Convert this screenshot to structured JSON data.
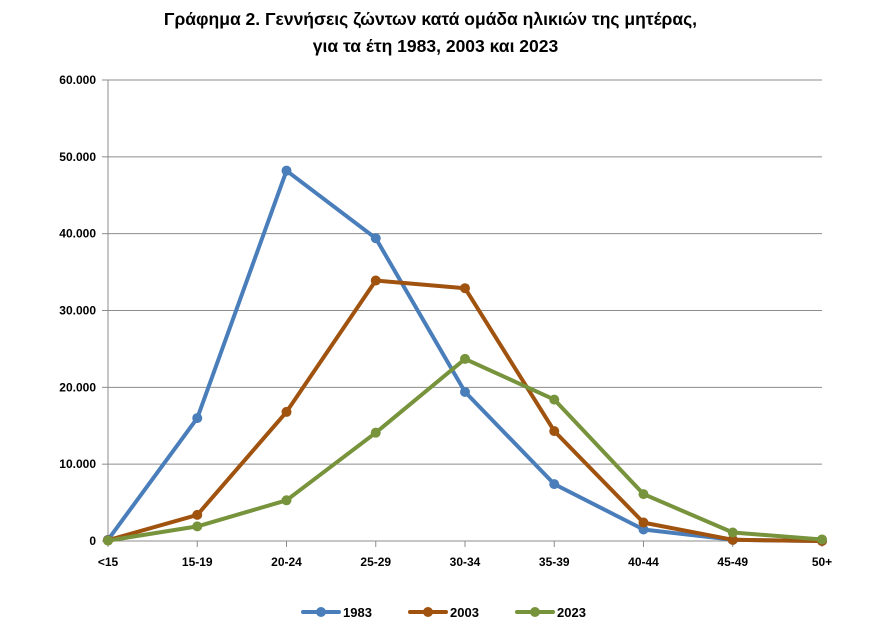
{
  "chart_data": {
    "type": "line",
    "title_line1": "Γράφημα 2.  Γεννήσεις ζώντων κατά ομάδα ηλικιών της μητέρας,",
    "title_line2": "για τα έτη 1983, 2003 και 2023",
    "xlabel": "",
    "ylabel": "",
    "categories": [
      "<15",
      "15-19",
      "20-24",
      "25-29",
      "30-34",
      "35-39",
      "40-44",
      "45-49",
      "50+"
    ],
    "ylim": [
      0,
      60000
    ],
    "yticks": [
      0,
      10000,
      20000,
      30000,
      40000,
      50000,
      60000
    ],
    "ytick_labels": [
      "0",
      "10.000",
      "20.000",
      "30.000",
      "40.000",
      "50.000",
      "60.000"
    ],
    "grid": true,
    "legend_position": "bottom",
    "series": [
      {
        "name": "1983",
        "color": "#4a7ebb",
        "values": [
          150,
          16000,
          48200,
          39400,
          19400,
          7400,
          1500,
          150,
          0
        ]
      },
      {
        "name": "2003",
        "color": "#a0520f",
        "values": [
          100,
          3400,
          16800,
          33900,
          32900,
          14300,
          2400,
          150,
          0
        ]
      },
      {
        "name": "2023",
        "color": "#77933c",
        "values": [
          50,
          1900,
          5300,
          14100,
          23700,
          18400,
          6100,
          1100,
          200
        ]
      }
    ]
  }
}
